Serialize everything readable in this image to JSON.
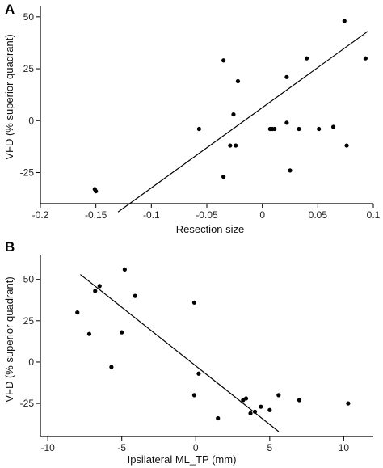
{
  "chart_data": [
    {
      "panel": "A",
      "type": "scatter",
      "xlabel": "Resection size",
      "ylabel": "VFD (% superior quadrant)",
      "xlim": [
        -0.2,
        0.1
      ],
      "ylim": [
        -40,
        55
      ],
      "xticks": [
        -0.2,
        -0.15,
        -0.1,
        -0.05,
        0,
        0.05,
        0.1
      ],
      "xtick_labels": [
        "-0.2",
        "-0.15",
        "-0.1",
        "-0.05",
        "0",
        "0.05",
        "0.1"
      ],
      "yticks": [
        -25,
        0,
        25,
        50
      ],
      "ytick_labels": [
        "-25",
        "0",
        "25",
        "50"
      ],
      "points": [
        {
          "x": -0.151,
          "y": -33
        },
        {
          "x": -0.15,
          "y": -34
        },
        {
          "x": -0.057,
          "y": -4
        },
        {
          "x": -0.035,
          "y": 29
        },
        {
          "x": -0.035,
          "y": -27
        },
        {
          "x": -0.029,
          "y": -12
        },
        {
          "x": -0.026,
          "y": 3
        },
        {
          "x": -0.024,
          "y": -12
        },
        {
          "x": -0.022,
          "y": 19
        },
        {
          "x": 0.007,
          "y": -4
        },
        {
          "x": 0.009,
          "y": -4
        },
        {
          "x": 0.011,
          "y": -4
        },
        {
          "x": 0.022,
          "y": 21
        },
        {
          "x": 0.022,
          "y": -1
        },
        {
          "x": 0.025,
          "y": -24
        },
        {
          "x": 0.033,
          "y": -4
        },
        {
          "x": 0.04,
          "y": 30
        },
        {
          "x": 0.051,
          "y": -4
        },
        {
          "x": 0.064,
          "y": -3
        },
        {
          "x": 0.074,
          "y": 48
        },
        {
          "x": 0.076,
          "y": -12
        },
        {
          "x": 0.093,
          "y": 30
        }
      ],
      "fit": {
        "x": [
          -0.13,
          0.095
        ],
        "y": [
          -44,
          43
        ]
      }
    },
    {
      "panel": "B",
      "type": "scatter",
      "xlabel": "Ipsilateral ML_TP (mm)",
      "ylabel": "VFD (% superior quadrant)",
      "xlim": [
        -10.5,
        12
      ],
      "ylim": [
        -45,
        65
      ],
      "xticks": [
        -10,
        -5,
        0,
        5,
        10
      ],
      "xtick_labels": [
        "-10",
        "-5",
        "0",
        "5",
        "10"
      ],
      "yticks": [
        -25,
        0,
        25,
        50
      ],
      "ytick_labels": [
        "-25",
        "0",
        "25",
        "50"
      ],
      "points": [
        {
          "x": -8.0,
          "y": 30
        },
        {
          "x": -7.2,
          "y": 17
        },
        {
          "x": -6.8,
          "y": 43
        },
        {
          "x": -6.5,
          "y": 46
        },
        {
          "x": -5.7,
          "y": -3
        },
        {
          "x": -5.0,
          "y": 18
        },
        {
          "x": -4.8,
          "y": 56
        },
        {
          "x": -4.1,
          "y": 40
        },
        {
          "x": -0.1,
          "y": 36
        },
        {
          "x": -0.1,
          "y": -20
        },
        {
          "x": 0.2,
          "y": -7
        },
        {
          "x": 1.5,
          "y": -34
        },
        {
          "x": 3.2,
          "y": -23
        },
        {
          "x": 3.4,
          "y": -22
        },
        {
          "x": 3.7,
          "y": -31
        },
        {
          "x": 4.0,
          "y": -30
        },
        {
          "x": 4.4,
          "y": -27
        },
        {
          "x": 5.0,
          "y": -29
        },
        {
          "x": 5.6,
          "y": -20
        },
        {
          "x": 7.0,
          "y": -23
        },
        {
          "x": 10.3,
          "y": -25
        }
      ],
      "fit": {
        "x": [
          -7.8,
          5.6
        ],
        "y": [
          53,
          -42
        ]
      }
    }
  ]
}
